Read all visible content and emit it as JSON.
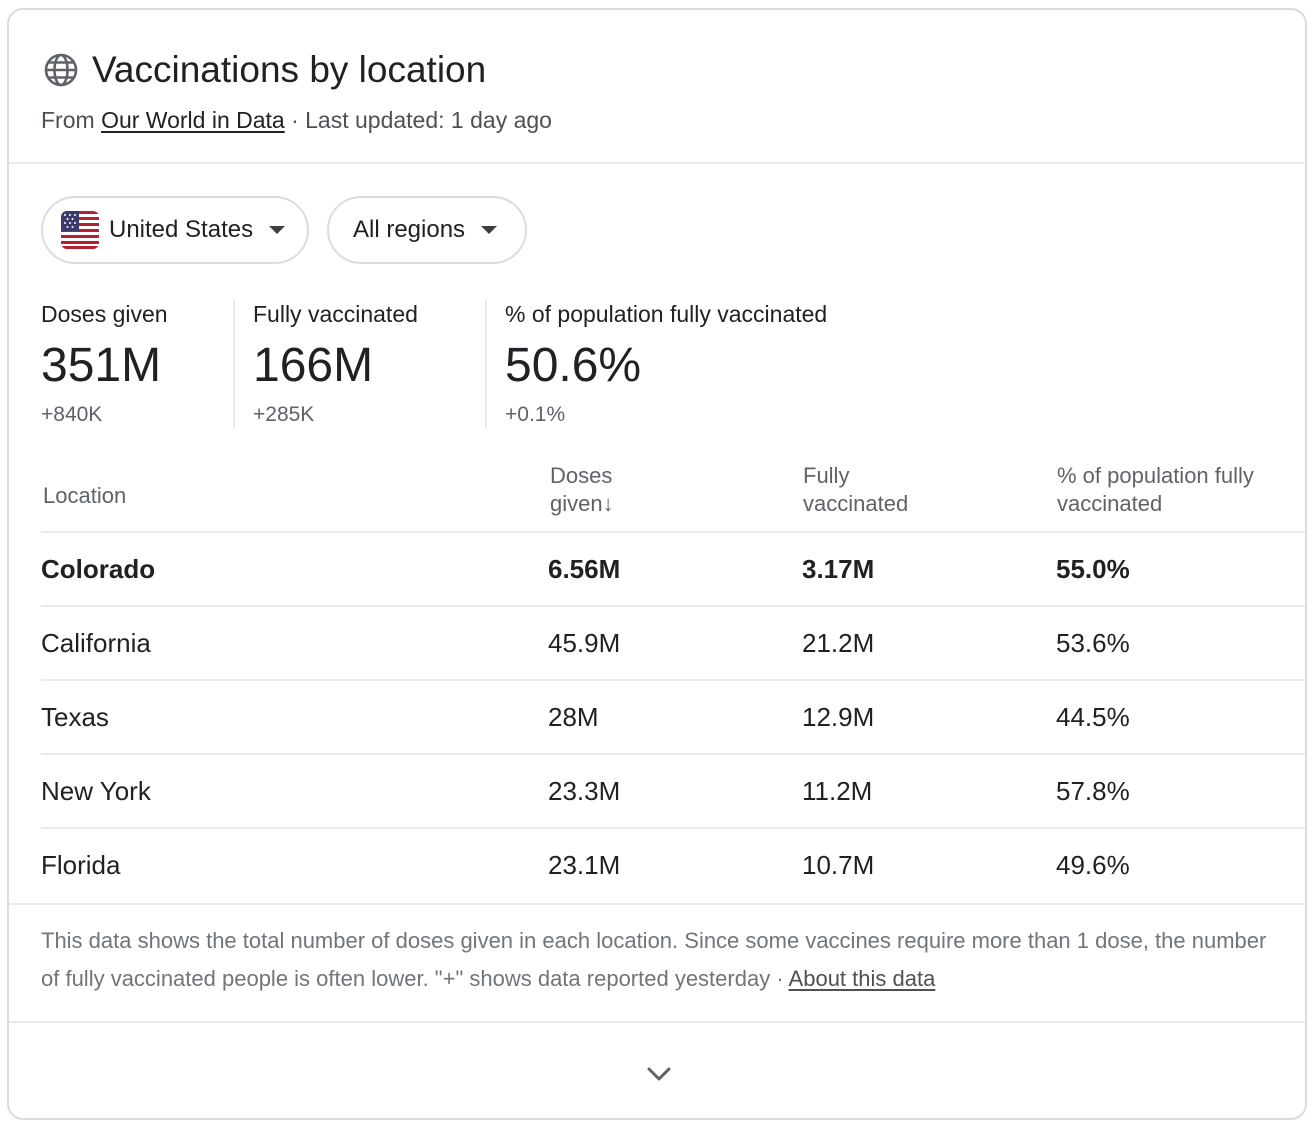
{
  "header": {
    "title": "Vaccinations by location",
    "source_prefix": "From ",
    "source_link": "Our World in Data",
    "updated": " · Last updated: 1 day ago"
  },
  "filters": {
    "country": "United States",
    "region": "All regions"
  },
  "stats": [
    {
      "label": "Doses given",
      "value": "351M",
      "delta": "+840K"
    },
    {
      "label": "Fully vaccinated",
      "value": "166M",
      "delta": "+285K"
    },
    {
      "label": "% of population fully vaccinated",
      "value": "50.6%",
      "delta": "+0.1%"
    }
  ],
  "table": {
    "headers": {
      "location": "Location",
      "doses_line1": "Doses",
      "doses_line2": "given",
      "sort_arrow": "↓",
      "fully_line1": "Fully",
      "fully_line2": "vaccinated",
      "pct_line1": "% of population fully",
      "pct_line2": "vaccinated"
    },
    "rows": [
      {
        "location": "Colorado",
        "doses": "6.56M",
        "fully": "3.17M",
        "pct": "55.0%"
      },
      {
        "location": "California",
        "doses": "45.9M",
        "fully": "21.2M",
        "pct": "53.6%"
      },
      {
        "location": "Texas",
        "doses": "28M",
        "fully": "12.9M",
        "pct": "44.5%"
      },
      {
        "location": "New York",
        "doses": "23.3M",
        "fully": "11.2M",
        "pct": "57.8%"
      },
      {
        "location": "Florida",
        "doses": "23.1M",
        "fully": "10.7M",
        "pct": "49.6%"
      }
    ]
  },
  "footer": {
    "note": "This data shows the total number of doses given in each location. Since some vaccines require more than 1 dose, the number of fully vaccinated people is often lower. \"+\" shows data reported yesterday",
    "separator": " · ",
    "about_link": "About this data"
  },
  "icons": {
    "globe": "globe-icon",
    "flag": "us-flag-icon",
    "dropdown": "caret-down-icon",
    "expand": "chevron-down-icon"
  },
  "colors": {
    "text_primary": "#202124",
    "text_secondary": "#5f6368",
    "border": "#dadce0",
    "divider": "#e8eaed"
  }
}
